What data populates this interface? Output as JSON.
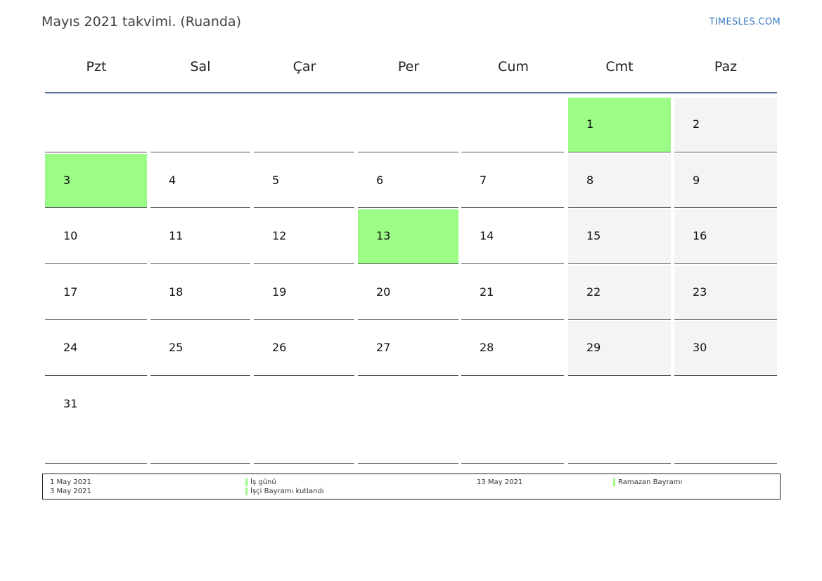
{
  "title": "Mayıs 2021 takvimi. (Ruanda)",
  "site": "TIMESLES.COM",
  "colors": {
    "holiday": "#9bfc86",
    "weekend": "#f4f4f4",
    "rule": "#5a7796",
    "link": "#3a7cc0"
  },
  "weekdays": [
    "Pzt",
    "Sal",
    "Çar",
    "Per",
    "Cum",
    "Cmt",
    "Paz"
  ],
  "weeks": [
    [
      {
        "day": "",
        "type": "blank"
      },
      {
        "day": "",
        "type": "blank"
      },
      {
        "day": "",
        "type": "blank"
      },
      {
        "day": "",
        "type": "blank"
      },
      {
        "day": "",
        "type": "blank"
      },
      {
        "day": "1",
        "type": "holiday"
      },
      {
        "day": "2",
        "type": "weekend"
      }
    ],
    [
      {
        "day": "3",
        "type": "holiday"
      },
      {
        "day": "4",
        "type": "normal"
      },
      {
        "day": "5",
        "type": "normal"
      },
      {
        "day": "6",
        "type": "normal"
      },
      {
        "day": "7",
        "type": "normal"
      },
      {
        "day": "8",
        "type": "weekend"
      },
      {
        "day": "9",
        "type": "weekend"
      }
    ],
    [
      {
        "day": "10",
        "type": "normal"
      },
      {
        "day": "11",
        "type": "normal"
      },
      {
        "day": "12",
        "type": "normal"
      },
      {
        "day": "13",
        "type": "holiday"
      },
      {
        "day": "14",
        "type": "normal"
      },
      {
        "day": "15",
        "type": "weekend"
      },
      {
        "day": "16",
        "type": "weekend"
      }
    ],
    [
      {
        "day": "17",
        "type": "normal"
      },
      {
        "day": "18",
        "type": "normal"
      },
      {
        "day": "19",
        "type": "normal"
      },
      {
        "day": "20",
        "type": "normal"
      },
      {
        "day": "21",
        "type": "normal"
      },
      {
        "day": "22",
        "type": "weekend"
      },
      {
        "day": "23",
        "type": "weekend"
      }
    ],
    [
      {
        "day": "24",
        "type": "normal"
      },
      {
        "day": "25",
        "type": "normal"
      },
      {
        "day": "26",
        "type": "normal"
      },
      {
        "day": "27",
        "type": "normal"
      },
      {
        "day": "28",
        "type": "normal"
      },
      {
        "day": "29",
        "type": "weekend"
      },
      {
        "day": "30",
        "type": "weekend"
      }
    ],
    [
      {
        "day": "31",
        "type": "normal"
      },
      {
        "day": "",
        "type": "blank"
      },
      {
        "day": "",
        "type": "blank"
      },
      {
        "day": "",
        "type": "blank"
      },
      {
        "day": "",
        "type": "blank"
      },
      {
        "day": "",
        "type": "blank"
      },
      {
        "day": "",
        "type": "blank"
      }
    ]
  ],
  "legend": [
    {
      "date": "1 May 2021",
      "name": "İş günü"
    },
    {
      "date": "3 May 2021",
      "name": "İşçi Bayramı kutlandı"
    },
    {
      "date": "13 May 2021",
      "name": "Ramazan Bayramı"
    }
  ]
}
